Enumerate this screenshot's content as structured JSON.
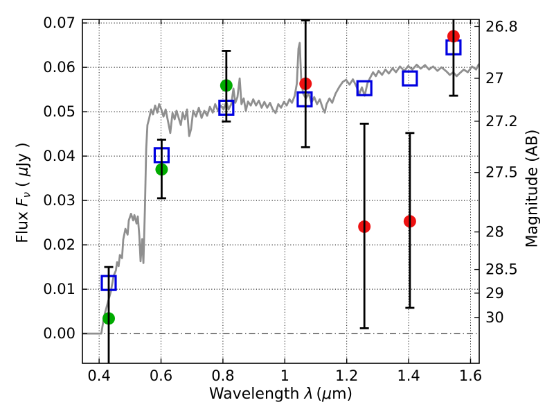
{
  "figure": {
    "background": "#ffffff",
    "colors": {
      "green": "#00ab00",
      "red": "#ee1111",
      "blue": "#0000e0",
      "spectrum": "#8f8f8f",
      "axis": "#000000",
      "grid": "#000000"
    },
    "labels": {
      "x_word": "Wavelength",
      "x_sym": "λ",
      "x_unit_pre": "(",
      "x_unit_mu": "μ",
      "x_unit_post": "m)",
      "yl_word": "Flux",
      "yl_sym": "F",
      "yl_sub": "ν",
      "yl_unit_pre": "( ",
      "yl_unit_mu": "μ",
      "yl_unit_post": "Jy )",
      "yr": "Magnitude (AB)"
    }
  },
  "chart_data": {
    "type": "line+scatter",
    "title": "",
    "xlabel": "Wavelength λ (μm)",
    "ylabel_left": "Flux Fν (μJy)",
    "ylabel_right": "Magnitude (AB)",
    "grid": "dotted, at all flux and wavelength ticks",
    "zero_line": "dash-dot at flux 0.00",
    "xlim": [
      0.346,
      1.628
    ],
    "ylim_flux": [
      -0.0067,
      0.0708
    ],
    "x_ticks": {
      "values": [
        0.4,
        0.6,
        0.8,
        1.0,
        1.2,
        1.4,
        1.6
      ],
      "labels": [
        "0.4",
        "0.6",
        "0.8",
        "1",
        "1.2",
        "1.4",
        "1.6"
      ]
    },
    "y_ticks_left": {
      "values": [
        0.0,
        0.01,
        0.02,
        0.03,
        0.04,
        0.05,
        0.06,
        0.07
      ],
      "labels": [
        "0.00",
        "0.01",
        "0.02",
        "0.03",
        "0.04",
        "0.05",
        "0.06",
        "0.07"
      ]
    },
    "y_ticks_right": [
      {
        "label": "26.8",
        "flux": 0.06918
      },
      {
        "label": "27",
        "flux": 0.05754
      },
      {
        "label": "27.2",
        "flux": 0.04786
      },
      {
        "label": "27.5",
        "flux": 0.03631
      },
      {
        "label": "28",
        "flux": 0.02291
      },
      {
        "label": "28.5",
        "flux": 0.01445
      },
      {
        "label": "29",
        "flux": 0.00912
      },
      {
        "label": "30",
        "flux": 0.00363
      }
    ],
    "observed_points": [
      {
        "color": "green",
        "lambda": 0.431,
        "flux": 0.0034,
        "err_plus": 0.0116,
        "err_minus": 0.0116
      },
      {
        "color": "green",
        "lambda": 0.602,
        "flux": 0.037,
        "err_plus": 0.0067,
        "err_minus": 0.0065
      },
      {
        "color": "green",
        "lambda": 0.811,
        "flux": 0.0559,
        "err_plus": 0.0078,
        "err_minus": 0.0081
      },
      {
        "color": "red",
        "lambda": 1.067,
        "flux": 0.0563,
        "err_plus": 0.0143,
        "err_minus": 0.0143
      },
      {
        "color": "red",
        "lambda": 1.257,
        "flux": 0.0241,
        "err_plus": 0.0232,
        "err_minus": 0.0229
      },
      {
        "color": "red",
        "lambda": 1.404,
        "flux": 0.0253,
        "err_plus": 0.0199,
        "err_minus": 0.0195
      },
      {
        "color": "red",
        "lambda": 1.545,
        "flux": 0.067,
        "err_plus": 0.0134,
        "err_minus": 0.0134
      }
    ],
    "model_points": [
      {
        "lambda": 0.431,
        "flux": 0.0114
      },
      {
        "lambda": 0.602,
        "flux": 0.0402
      },
      {
        "lambda": 0.811,
        "flux": 0.0509
      },
      {
        "lambda": 1.064,
        "flux": 0.0528
      },
      {
        "lambda": 1.257,
        "flux": 0.0553
      },
      {
        "lambda": 1.404,
        "flux": 0.0575
      },
      {
        "lambda": 1.545,
        "flux": 0.0645
      }
    ],
    "spectrum": [
      [
        0.346,
        0.0
      ],
      [
        0.407,
        0.0
      ],
      [
        0.416,
        0.0039
      ],
      [
        0.427,
        0.0067
      ],
      [
        0.438,
        0.0095
      ],
      [
        0.447,
        0.013
      ],
      [
        0.454,
        0.0142
      ],
      [
        0.458,
        0.0161
      ],
      [
        0.463,
        0.0152
      ],
      [
        0.467,
        0.0177
      ],
      [
        0.474,
        0.017
      ],
      [
        0.478,
        0.0212
      ],
      [
        0.485,
        0.0236
      ],
      [
        0.492,
        0.0223
      ],
      [
        0.496,
        0.0255
      ],
      [
        0.503,
        0.027
      ],
      [
        0.51,
        0.0255
      ],
      [
        0.514,
        0.0267
      ],
      [
        0.521,
        0.0248
      ],
      [
        0.525,
        0.0264
      ],
      [
        0.53,
        0.022
      ],
      [
        0.534,
        0.0163
      ],
      [
        0.539,
        0.0213
      ],
      [
        0.543,
        0.0159
      ],
      [
        0.548,
        0.0283
      ],
      [
        0.552,
        0.0416
      ],
      [
        0.556,
        0.047
      ],
      [
        0.561,
        0.0483
      ],
      [
        0.568,
        0.0505
      ],
      [
        0.574,
        0.0494
      ],
      [
        0.581,
        0.0514
      ],
      [
        0.588,
        0.0498
      ],
      [
        0.594,
        0.0517
      ],
      [
        0.601,
        0.0505
      ],
      [
        0.608,
        0.0489
      ],
      [
        0.615,
        0.0505
      ],
      [
        0.624,
        0.0473
      ],
      [
        0.63,
        0.0452
      ],
      [
        0.637,
        0.0497
      ],
      [
        0.644,
        0.0483
      ],
      [
        0.65,
        0.0502
      ],
      [
        0.657,
        0.0486
      ],
      [
        0.664,
        0.047
      ],
      [
        0.67,
        0.0498
      ],
      [
        0.677,
        0.0483
      ],
      [
        0.684,
        0.0505
      ],
      [
        0.691,
        0.0445
      ],
      [
        0.697,
        0.0461
      ],
      [
        0.704,
        0.0502
      ],
      [
        0.713,
        0.0489
      ],
      [
        0.722,
        0.0509
      ],
      [
        0.731,
        0.0486
      ],
      [
        0.74,
        0.0502
      ],
      [
        0.749,
        0.0491
      ],
      [
        0.758,
        0.0511
      ],
      [
        0.767,
        0.0498
      ],
      [
        0.775,
        0.0517
      ],
      [
        0.784,
        0.0502
      ],
      [
        0.793,
        0.0514
      ],
      [
        0.802,
        0.0505
      ],
      [
        0.811,
        0.0523
      ],
      [
        0.818,
        0.0505
      ],
      [
        0.827,
        0.0517
      ],
      [
        0.834,
        0.0552
      ],
      [
        0.84,
        0.052
      ],
      [
        0.847,
        0.0533
      ],
      [
        0.854,
        0.0575
      ],
      [
        0.86,
        0.0517
      ],
      [
        0.867,
        0.053
      ],
      [
        0.874,
        0.0502
      ],
      [
        0.881,
        0.0523
      ],
      [
        0.89,
        0.0514
      ],
      [
        0.898,
        0.0528
      ],
      [
        0.907,
        0.0514
      ],
      [
        0.916,
        0.0525
      ],
      [
        0.925,
        0.0509
      ],
      [
        0.934,
        0.0522
      ],
      [
        0.943,
        0.0509
      ],
      [
        0.952,
        0.052
      ],
      [
        0.961,
        0.0505
      ],
      [
        0.97,
        0.0497
      ],
      [
        0.979,
        0.0517
      ],
      [
        0.988,
        0.0509
      ],
      [
        0.997,
        0.0522
      ],
      [
        1.006,
        0.0514
      ],
      [
        1.015,
        0.0528
      ],
      [
        1.023,
        0.052
      ],
      [
        1.032,
        0.0536
      ],
      [
        1.039,
        0.0564
      ],
      [
        1.044,
        0.0642
      ],
      [
        1.048,
        0.0655
      ],
      [
        1.053,
        0.0572
      ],
      [
        1.059,
        0.0541
      ],
      [
        1.068,
        0.053
      ],
      [
        1.077,
        0.0541
      ],
      [
        1.086,
        0.052
      ],
      [
        1.095,
        0.0533
      ],
      [
        1.104,
        0.0517
      ],
      [
        1.113,
        0.0528
      ],
      [
        1.122,
        0.0509
      ],
      [
        1.129,
        0.0498
      ],
      [
        1.135,
        0.0517
      ],
      [
        1.144,
        0.053
      ],
      [
        1.153,
        0.052
      ],
      [
        1.164,
        0.0541
      ],
      [
        1.176,
        0.0556
      ],
      [
        1.187,
        0.0567
      ],
      [
        1.198,
        0.0572
      ],
      [
        1.209,
        0.0561
      ],
      [
        1.22,
        0.0573
      ],
      [
        1.232,
        0.0556
      ],
      [
        1.24,
        0.0539
      ],
      [
        1.249,
        0.0555
      ],
      [
        1.258,
        0.0536
      ],
      [
        1.267,
        0.0564
      ],
      [
        1.276,
        0.0577
      ],
      [
        1.285,
        0.0589
      ],
      [
        1.294,
        0.058
      ],
      [
        1.303,
        0.0592
      ],
      [
        1.314,
        0.0583
      ],
      [
        1.325,
        0.0595
      ],
      [
        1.336,
        0.0586
      ],
      [
        1.348,
        0.0598
      ],
      [
        1.359,
        0.0589
      ],
      [
        1.372,
        0.0602
      ],
      [
        1.386,
        0.0592
      ],
      [
        1.399,
        0.0603
      ],
      [
        1.412,
        0.0595
      ],
      [
        1.426,
        0.0606
      ],
      [
        1.439,
        0.0597
      ],
      [
        1.453,
        0.0605
      ],
      [
        1.466,
        0.0595
      ],
      [
        1.479,
        0.0602
      ],
      [
        1.493,
        0.0592
      ],
      [
        1.506,
        0.06
      ],
      [
        1.522,
        0.0591
      ],
      [
        1.533,
        0.0583
      ],
      [
        1.544,
        0.0589
      ],
      [
        1.555,
        0.058
      ],
      [
        1.567,
        0.0588
      ],
      [
        1.578,
        0.0595
      ],
      [
        1.591,
        0.0589
      ],
      [
        1.605,
        0.0602
      ],
      [
        1.618,
        0.0595
      ],
      [
        1.627,
        0.0608
      ]
    ]
  }
}
